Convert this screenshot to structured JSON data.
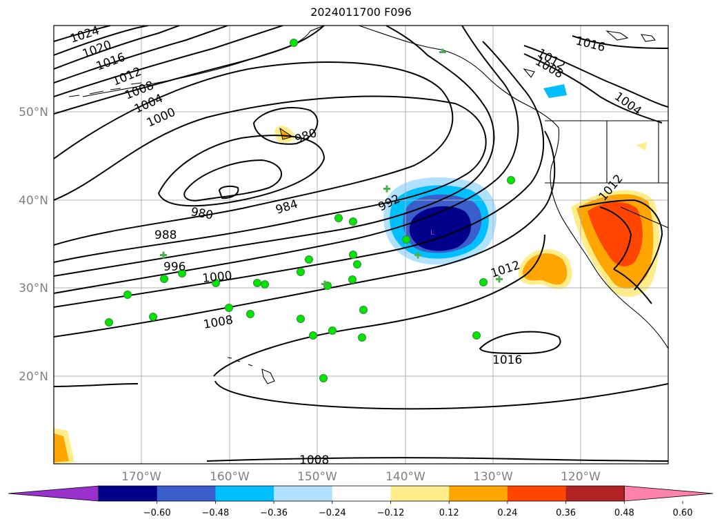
{
  "title": "2024011700 F096",
  "map": {
    "lat_labels": [
      "50°N",
      "40°N",
      "30°N",
      "20°N"
    ],
    "lon_labels": [
      "170°W",
      "160°W",
      "150°W",
      "140°W",
      "130°W",
      "120°W"
    ],
    "contour_labels": [
      "1024",
      "1020",
      "1016",
      "1012",
      "1008",
      "1004",
      "1000",
      "980",
      "980",
      "984",
      "988",
      "992",
      "996",
      "1000",
      "1008",
      "1012",
      "1016",
      "1016",
      "1012",
      "1008",
      "1004",
      "1012",
      "1008"
    ],
    "low_marker": "L"
  },
  "colorbar": {
    "ticks": [
      "−0.60",
      "−0.48",
      "−0.36",
      "−0.24",
      "−0.12",
      "0.12",
      "0.24",
      "0.36",
      "0.48",
      "0.60"
    ],
    "colors": [
      "#9932cc",
      "#00008b",
      "#3a5fcd",
      "#00bfff",
      "#b0e2ff",
      "#ffffff",
      "#ffec8b",
      "#ffa500",
      "#ff4500",
      "#b22222",
      "#ff82ab"
    ]
  }
}
